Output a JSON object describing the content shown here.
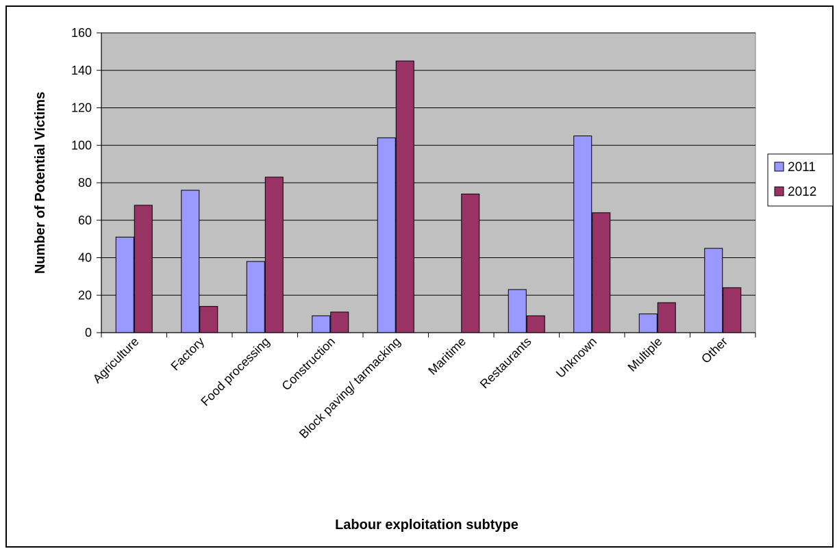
{
  "chart_data": {
    "type": "bar",
    "title": "",
    "xlabel": "Labour exploitation subtype",
    "ylabel": "Number of Potential Victims",
    "categories": [
      "Agriculture",
      "Factory",
      "Food processing",
      "Construction",
      "Block paving/ tarmacking",
      "Maritime",
      "Restaurants",
      "Unknown",
      "Multiple",
      "Other"
    ],
    "series": [
      {
        "name": "2011",
        "color": "#9999ff",
        "values": [
          51,
          76,
          38,
          9,
          104,
          0,
          23,
          105,
          10,
          45
        ]
      },
      {
        "name": "2012",
        "color": "#993366",
        "values": [
          68,
          14,
          83,
          11,
          145,
          74,
          9,
          64,
          16,
          24
        ]
      }
    ],
    "ylim": [
      0,
      160
    ],
    "yticks": [
      0,
      20,
      40,
      60,
      80,
      100,
      120,
      140,
      160
    ],
    "grid": true,
    "plot_background": "#c0c0c0",
    "legend": "right"
  }
}
